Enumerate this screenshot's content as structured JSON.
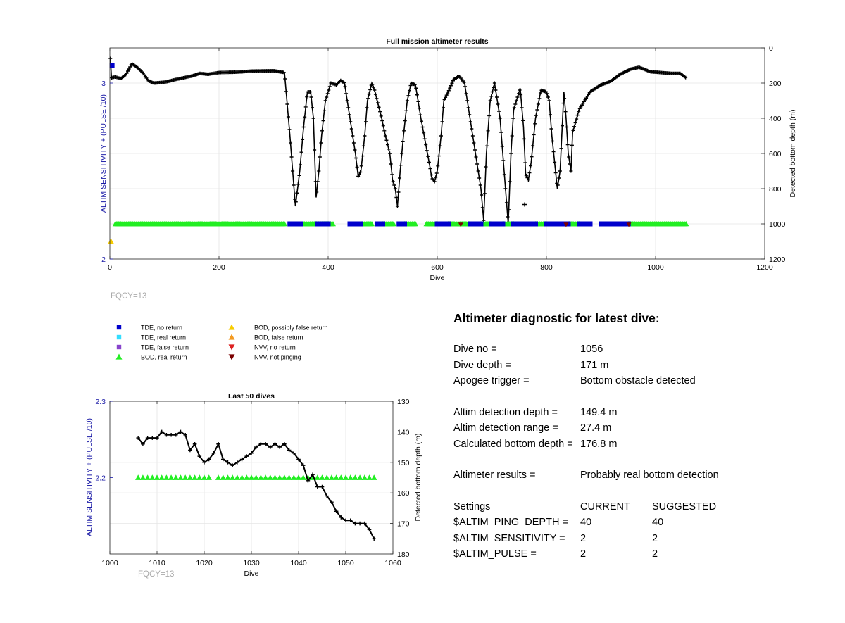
{
  "colors": {
    "tde_no_return": "#0000cc",
    "tde_real_return": "#33ddff",
    "tde_false_return": "#8844cc",
    "bod_real_return": "#22ee22",
    "bod_possibly_false": "#f7cc00",
    "bod_false_return": "#f39a22",
    "nvv_no_return": "#dd2222",
    "nvv_not_pinging": "#7a0000",
    "depth_line": "#000000",
    "left_axis": "#1a1aa6",
    "fqcy_text": "#aaaaaa"
  },
  "legend": [
    {
      "label": "TDE, no return",
      "marker": "square",
      "color": "#0000cc"
    },
    {
      "label": "TDE, real return",
      "marker": "square",
      "color": "#33ddff"
    },
    {
      "label": "TDE, false return",
      "marker": "square",
      "color": "#8844cc"
    },
    {
      "label": "BOD, real return",
      "marker": "triangle-up",
      "color": "#22ee22"
    },
    {
      "label": "BOD, possibly false return",
      "marker": "triangle-up",
      "color": "#f7cc00"
    },
    {
      "label": "BOD, false return",
      "marker": "triangle-up",
      "color": "#f39a22"
    },
    {
      "label": "NVV, no return",
      "marker": "triangle-down",
      "color": "#dd2222"
    },
    {
      "label": "NVV, not pinging",
      "marker": "triangle-down",
      "color": "#7a0000"
    }
  ],
  "chart_data": [
    {
      "type": "scatter",
      "title": "Full mission altimeter results",
      "xlabel": "Dive",
      "ylabel_left": "ALTIM SENSITIVITY + (PULSE /10)",
      "ylabel_right": "Detected bottom depth (m)",
      "xlim": [
        0,
        1200
      ],
      "ylim_left": [
        2,
        3.2
      ],
      "ylim_right": [
        0,
        1200
      ],
      "right_reversed": true,
      "grid": true,
      "note": "FQCY=13",
      "xticks": [
        0,
        200,
        400,
        600,
        800,
        1000,
        1200
      ],
      "yticks_left": [
        2,
        3
      ],
      "yticks_right": [
        0,
        200,
        400,
        600,
        800,
        1000,
        1200
      ],
      "bottom_depth_keypoints": [
        [
          1,
          60
        ],
        [
          3,
          170
        ],
        [
          10,
          165
        ],
        [
          20,
          175
        ],
        [
          30,
          150
        ],
        [
          40,
          90
        ],
        [
          50,
          110
        ],
        [
          60,
          140
        ],
        [
          70,
          185
        ],
        [
          80,
          200
        ],
        [
          100,
          195
        ],
        [
          120,
          180
        ],
        [
          150,
          160
        ],
        [
          165,
          145
        ],
        [
          180,
          150
        ],
        [
          200,
          140
        ],
        [
          230,
          138
        ],
        [
          260,
          132
        ],
        [
          300,
          130
        ],
        [
          320,
          140
        ],
        [
          330,
          500
        ],
        [
          335,
          700
        ],
        [
          340,
          900
        ],
        [
          348,
          700
        ],
        [
          355,
          450
        ],
        [
          362,
          250
        ],
        [
          368,
          250
        ],
        [
          373,
          400
        ],
        [
          378,
          850
        ],
        [
          383,
          700
        ],
        [
          388,
          500
        ],
        [
          395,
          300
        ],
        [
          405,
          200
        ],
        [
          415,
          210
        ],
        [
          423,
          185
        ],
        [
          430,
          200
        ],
        [
          440,
          400
        ],
        [
          445,
          500
        ],
        [
          450,
          600
        ],
        [
          455,
          730
        ],
        [
          460,
          700
        ],
        [
          467,
          500
        ],
        [
          472,
          300
        ],
        [
          480,
          200
        ],
        [
          485,
          240
        ],
        [
          490,
          300
        ],
        [
          498,
          400
        ],
        [
          505,
          500
        ],
        [
          513,
          600
        ],
        [
          518,
          750
        ],
        [
          523,
          800
        ],
        [
          527,
          900
        ],
        [
          532,
          700
        ],
        [
          538,
          500
        ],
        [
          545,
          300
        ],
        [
          552,
          200
        ],
        [
          560,
          210
        ],
        [
          570,
          400
        ],
        [
          585,
          650
        ],
        [
          590,
          740
        ],
        [
          595,
          760
        ],
        [
          600,
          700
        ],
        [
          607,
          500
        ],
        [
          612,
          300
        ],
        [
          620,
          250
        ],
        [
          630,
          180
        ],
        [
          640,
          160
        ],
        [
          650,
          200
        ],
        [
          660,
          400
        ],
        [
          670,
          600
        ],
        [
          680,
          800
        ],
        [
          685,
          980
        ],
        [
          690,
          600
        ],
        [
          697,
          300
        ],
        [
          705,
          200
        ],
        [
          715,
          400
        ],
        [
          725,
          800
        ],
        [
          730,
          1000
        ],
        [
          735,
          600
        ],
        [
          740,
          350
        ],
        [
          748,
          270
        ],
        [
          752,
          230
        ],
        [
          758,
          450
        ],
        [
          762,
          720
        ],
        [
          767,
          750
        ],
        [
          772,
          650
        ],
        [
          780,
          400
        ],
        [
          790,
          240
        ],
        [
          800,
          250
        ],
        [
          805,
          300
        ],
        [
          810,
          500
        ],
        [
          815,
          650
        ],
        [
          820,
          800
        ],
        [
          825,
          700
        ],
        [
          832,
          250
        ],
        [
          836,
          400
        ],
        [
          840,
          600
        ],
        [
          845,
          700
        ],
        [
          848,
          480
        ],
        [
          860,
          350
        ],
        [
          870,
          300
        ],
        [
          880,
          250
        ],
        [
          890,
          230
        ],
        [
          900,
          210
        ],
        [
          910,
          200
        ],
        [
          920,
          185
        ],
        [
          935,
          150
        ],
        [
          955,
          120
        ],
        [
          970,
          110
        ],
        [
          990,
          135
        ],
        [
          1010,
          140
        ],
        [
          1030,
          145
        ],
        [
          1045,
          145
        ],
        [
          1056,
          171
        ]
      ],
      "isolated_points": [
        [
          760,
          890
        ]
      ],
      "bod_real_return_segments": [
        [
          10,
          320
        ],
        [
          355,
          410
        ],
        [
          460,
          480
        ],
        [
          500,
          520
        ],
        [
          540,
          560
        ],
        [
          580,
          600
        ],
        [
          620,
          660
        ],
        [
          680,
          700
        ],
        [
          720,
          740
        ],
        [
          780,
          800
        ],
        [
          840,
          860
        ],
        [
          950,
          1056
        ]
      ],
      "tde_no_return_segments": [
        [
          330,
          350
        ],
        [
          380,
          400
        ],
        [
          440,
          460
        ],
        [
          490,
          500
        ],
        [
          530,
          540
        ],
        [
          600,
          620
        ],
        [
          660,
          680
        ],
        [
          700,
          720
        ],
        [
          740,
          780
        ],
        [
          800,
          840
        ],
        [
          860,
          880
        ],
        [
          900,
          950
        ]
      ],
      "outliers": [
        {
          "dive": 4,
          "value": 3.1,
          "marker": "square",
          "color": "#0000cc"
        },
        {
          "dive": 2,
          "value": 2.1,
          "marker": "triangle-up",
          "color": "#f7cc00"
        },
        {
          "dive": 643,
          "value": 1004,
          "marker": "triangle-down",
          "color": "#7a0000"
        },
        {
          "dive": 836,
          "value": 1004,
          "marker": "triangle-down",
          "color": "#7a0000"
        },
        {
          "dive": 951,
          "value": 1004,
          "marker": "triangle-down",
          "color": "#7a0000"
        }
      ]
    },
    {
      "type": "line",
      "title": "Last 50 dives",
      "xlabel": "Dive",
      "ylabel_left": "ALTIM SENSITIVITY + (PULSE /10)",
      "ylabel_right": "Detected bottom depth (m)",
      "xlim": [
        1000,
        1060
      ],
      "ylim_left": [
        2.1,
        2.3
      ],
      "ylim_right": [
        130,
        180
      ],
      "right_reversed": true,
      "grid": true,
      "note": "FQCY=13",
      "xticks": [
        1000,
        1010,
        1020,
        1030,
        1040,
        1050,
        1060
      ],
      "yticks_left": [
        2.2,
        2.3
      ],
      "yticks_right": [
        130,
        140,
        150,
        160,
        170,
        180
      ],
      "x": [
        1006,
        1007,
        1008,
        1009,
        1010,
        1011,
        1012,
        1013,
        1014,
        1015,
        1016,
        1017,
        1018,
        1019,
        1020,
        1021,
        1022,
        1023,
        1024,
        1025,
        1026,
        1027,
        1028,
        1029,
        1030,
        1031,
        1032,
        1033,
        1034,
        1035,
        1036,
        1037,
        1038,
        1039,
        1040,
        1041,
        1042,
        1043,
        1044,
        1045,
        1046,
        1047,
        1048,
        1049,
        1050,
        1051,
        1052,
        1053,
        1054,
        1055,
        1056
      ],
      "bottom_depth": [
        142,
        144,
        142,
        142,
        142,
        140,
        141,
        141,
        141,
        140,
        141,
        146,
        144,
        148,
        150,
        149,
        147,
        144,
        149,
        150,
        151,
        150,
        149,
        148,
        147,
        145,
        144,
        144,
        145,
        144,
        145,
        144,
        146,
        147,
        149,
        151,
        156,
        154,
        158,
        158,
        161,
        163,
        166,
        168,
        169,
        169,
        170,
        170,
        170,
        172,
        175
      ],
      "bod_real_return_x": [
        1006,
        1007,
        1008,
        1009,
        1010,
        1011,
        1012,
        1013,
        1014,
        1015,
        1016,
        1017,
        1018,
        1019,
        1020,
        1021,
        1023,
        1024,
        1025,
        1026,
        1027,
        1028,
        1029,
        1030,
        1031,
        1032,
        1033,
        1034,
        1035,
        1036,
        1037,
        1038,
        1039,
        1040,
        1041,
        1042,
        1043,
        1044,
        1045,
        1046,
        1047,
        1048,
        1049,
        1050,
        1051,
        1052,
        1053,
        1054,
        1055,
        1056
      ],
      "bod_real_return_value": 2.2
    }
  ],
  "diagnostic": {
    "title": "Altimeter diagnostic for latest dive:",
    "dive_no_label": "Dive no =",
    "dive_no_value": "1056",
    "dive_depth_label": "Dive depth =",
    "dive_depth_value": "171 m",
    "apogee_label": "Apogee trigger =",
    "apogee_value": "Bottom obstacle detected",
    "altim_depth_label": "Altim detection depth =",
    "altim_depth_value": "149.4 m",
    "altim_range_label": "Altim detection range =",
    "altim_range_value": "27.4 m",
    "calc_depth_label": "Calculated bottom depth =",
    "calc_depth_value": "176.8 m",
    "results_label": "Altimeter results =",
    "results_value": "Probably real bottom detection",
    "settings_label": "Settings",
    "current_label": "CURRENT",
    "suggested_label": "SUGGESTED",
    "ping_depth_label": "$ALTIM_PING_DEPTH =",
    "ping_depth_current": "40",
    "ping_depth_suggested": "40",
    "sensitivity_label": "$ALTIM_SENSITIVITY =",
    "sensitivity_current": "2",
    "sensitivity_suggested": "2",
    "pulse_label": "$ALTIM_PULSE =",
    "pulse_current": "2",
    "pulse_suggested": "2"
  }
}
